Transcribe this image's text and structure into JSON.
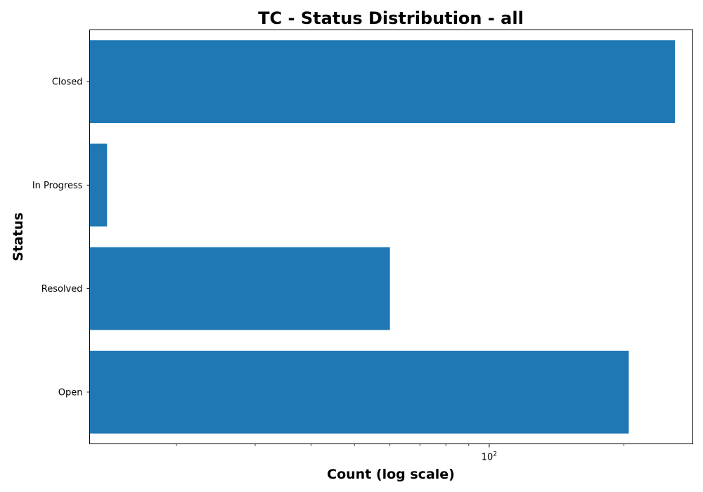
{
  "chart_data": {
    "type": "bar",
    "orientation": "horizontal",
    "title": "TC - Status Distribution - all",
    "xlabel": "Count (log scale)",
    "ylabel": "Status",
    "x_scale": "log",
    "categories": [
      "Closed",
      "In Progress",
      "Resolved",
      "Open"
    ],
    "values": [
      260,
      14,
      60,
      205
    ],
    "xlim": [
      12.8,
      285
    ],
    "x_major_ticks": [
      {
        "value": 100,
        "base": "10",
        "exponent": "2"
      }
    ],
    "x_minor_ticks": [
      20,
      30,
      40,
      50,
      60,
      70,
      80,
      90,
      200
    ],
    "bar_color": "#1f77b4",
    "grid": false,
    "legend": "none"
  }
}
